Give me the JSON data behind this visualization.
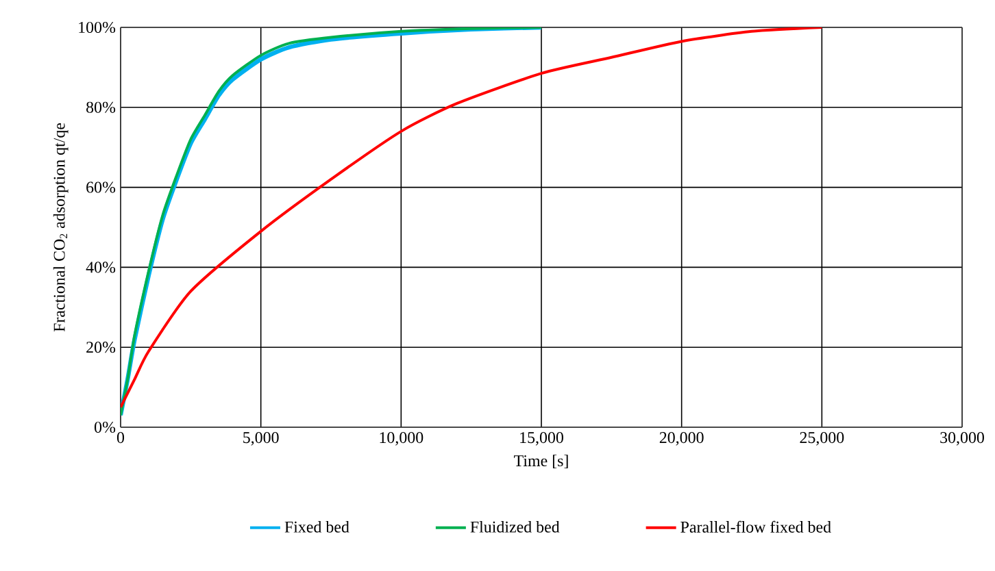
{
  "chart_data": {
    "type": "line",
    "xlabel": "Time [s]",
    "ylabel": "Fractional CO$_{2}$ adsorption qt/qe",
    "xlim": [
      0,
      30000
    ],
    "ylim": [
      0,
      100
    ],
    "xticks": [
      0,
      {
        "value": 5000,
        "label": "5,000"
      },
      {
        "value": 10000,
        "label": "10,000"
      },
      {
        "value": 15000,
        "label": "15,000"
      },
      {
        "value": 20000,
        "label": "20,000"
      },
      {
        "value": 25000,
        "label": "25,000"
      },
      {
        "value": 30000,
        "label": "30,000"
      }
    ],
    "yticks": [
      {
        "value": 0,
        "label": "0%"
      },
      {
        "value": 20,
        "label": "20%"
      },
      {
        "value": 40,
        "label": "40%"
      },
      {
        "value": 60,
        "label": "60%"
      },
      {
        "value": 80,
        "label": "80%"
      },
      {
        "value": 100,
        "label": "100%"
      }
    ],
    "grid": true,
    "legend": "bottom",
    "marker": "none",
    "line_style": "solid",
    "series": [
      {
        "name": "Fixed bed",
        "color": "#00b0f0",
        "x": [
          0,
          250,
          500,
          1000,
          1500,
          2000,
          2500,
          3000,
          3500,
          4000,
          5000,
          6000,
          7500,
          10000,
          12500,
          15000
        ],
        "values": [
          3,
          12,
          22,
          38,
          52,
          62,
          71,
          77,
          83,
          87,
          92,
          95,
          97,
          98.5,
          99.5,
          100
        ]
      },
      {
        "name": "Fluidized bed",
        "color": "#00b050",
        "x": [
          0,
          250,
          500,
          1000,
          1500,
          2000,
          2500,
          3000,
          3500,
          4000,
          5000,
          6000,
          7500,
          10000,
          12500,
          15000
        ],
        "values": [
          3,
          12,
          23,
          39,
          53,
          63,
          72,
          78,
          84,
          88,
          93,
          96,
          97.5,
          99,
          99.7,
          100
        ]
      },
      {
        "name": "Parallel-flow fixed bed",
        "color": "#ff0000",
        "x": [
          0,
          500,
          1000,
          2500,
          5000,
          7500,
          10000,
          12000,
          15000,
          17500,
          20000,
          22500,
          25000
        ],
        "values": [
          5,
          12,
          19,
          34,
          49,
          62,
          74,
          81,
          88.5,
          92.5,
          96.5,
          99,
          100
        ]
      }
    ]
  }
}
